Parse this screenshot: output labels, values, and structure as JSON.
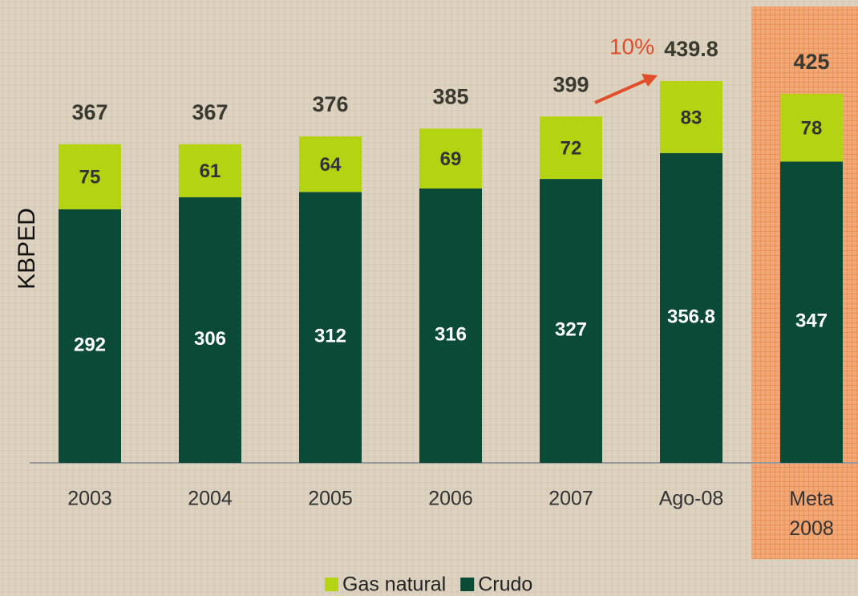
{
  "chart_data": {
    "type": "stacked-bar",
    "y_label": "KBPED",
    "categories": [
      "2003",
      "2004",
      "2005",
      "2006",
      "2007",
      "Ago-08",
      "Meta 2008"
    ],
    "series": [
      {
        "name": "Crudo",
        "color": "#0b4a36",
        "values": [
          292,
          306,
          312,
          316,
          327,
          356.8,
          347
        ]
      },
      {
        "name": "Gas natural",
        "color": "#b4d312",
        "values": [
          75,
          61,
          64,
          69,
          72,
          83,
          78
        ]
      }
    ],
    "totals": [
      367,
      367,
      376,
      385,
      399,
      439.8,
      425
    ],
    "annotation": "10%"
  }
}
